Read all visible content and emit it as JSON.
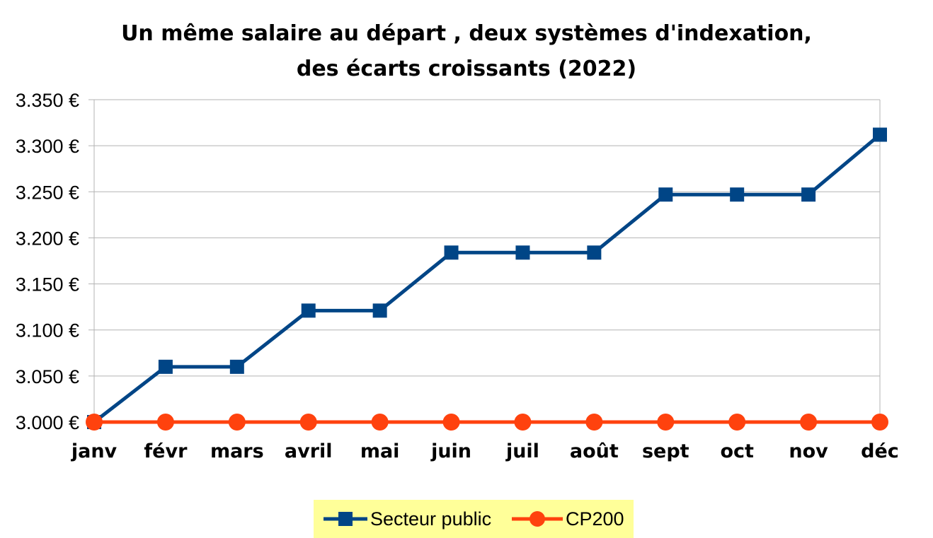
{
  "chart_data": {
    "type": "line",
    "title_line1": "Un même salaire au départ , deux systèmes d'indexation,",
    "title_line2": "des écarts croissants (2022)",
    "categories": [
      "janv",
      "févr",
      "mars",
      "avril",
      "mai",
      "juin",
      "juil",
      "août",
      "sept",
      "oct",
      "nov",
      "déc"
    ],
    "y_ticks": [
      "3.000 €",
      "3.050 €",
      "3.100 €",
      "3.150 €",
      "3.200 €",
      "3.250 €",
      "3.300 €",
      "3.350 €"
    ],
    "ylim": [
      3000,
      3350
    ],
    "grid": true,
    "legend_position": "bottom",
    "series": [
      {
        "name": "Secteur public",
        "color": "#004586",
        "marker": "square",
        "values": [
          3000,
          3060,
          3060,
          3121,
          3121,
          3184,
          3184,
          3184,
          3247,
          3247,
          3247,
          3312
        ]
      },
      {
        "name": "CP200",
        "color": "#ff420e",
        "marker": "circle",
        "values": [
          3000,
          3000,
          3000,
          3000,
          3000,
          3000,
          3000,
          3000,
          3000,
          3000,
          3000,
          3000
        ]
      }
    ]
  }
}
